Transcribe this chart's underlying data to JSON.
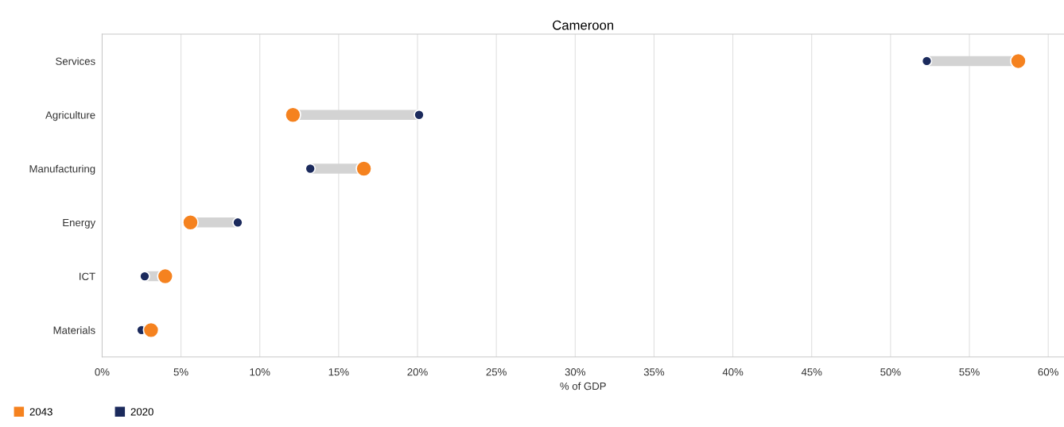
{
  "chart_data": {
    "type": "scatter",
    "title": "Cameroon",
    "xlabel": "% of GDP",
    "orientation": "horizontal",
    "categories": [
      "Services",
      "Agriculture",
      "Manufacturing",
      "Energy",
      "ICT",
      "Materials"
    ],
    "series": [
      {
        "name": "2043",
        "color": "#f5821f",
        "values": [
          58.1,
          12.1,
          16.6,
          5.6,
          4.0,
          3.1
        ]
      },
      {
        "name": "2020",
        "color": "#1b2a5c",
        "values": [
          52.3,
          20.1,
          13.2,
          8.6,
          2.7,
          2.5
        ]
      }
    ],
    "xlim": [
      0,
      61
    ],
    "xticks": [
      {
        "value": 0,
        "label": "0%"
      },
      {
        "value": 5,
        "label": "5%"
      },
      {
        "value": 10,
        "label": "10%"
      },
      {
        "value": 15,
        "label": "15%"
      },
      {
        "value": 20,
        "label": "20%"
      },
      {
        "value": 25,
        "label": "25%"
      },
      {
        "value": 30,
        "label": "30%"
      },
      {
        "value": 35,
        "label": "35%"
      },
      {
        "value": 40,
        "label": "40%"
      },
      {
        "value": 45,
        "label": "45%"
      },
      {
        "value": 50,
        "label": "50%"
      },
      {
        "value": 55,
        "label": "55%"
      },
      {
        "value": 60,
        "label": "60%"
      }
    ],
    "grid": "x",
    "legend": "bottom left",
    "marker": "circle"
  }
}
